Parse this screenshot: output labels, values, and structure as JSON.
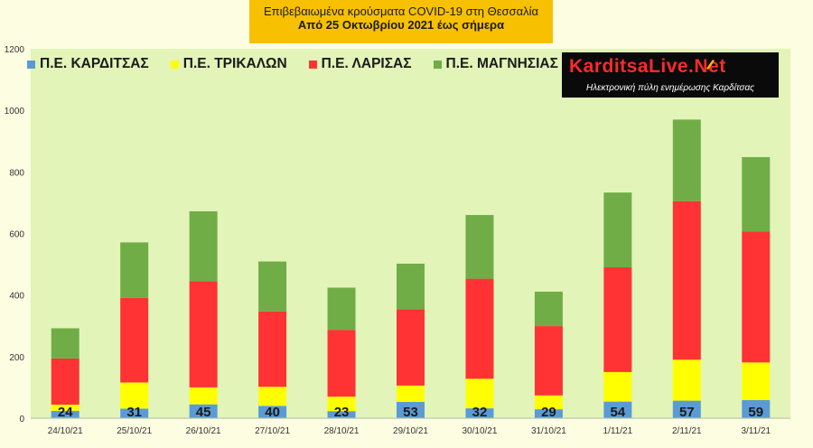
{
  "header": {
    "line1": "Επιβεβαιωμένα κρούσματα COVID-19 στη Θεσσαλία",
    "line2": "Από 25 Οκτωβρίου 2021 έως σήμερα"
  },
  "logo": {
    "name": "KarditsaLive.Net",
    "tagline": "Ηλεκτρονική πύλη ενημέρωσης Καρδίτσας"
  },
  "chart_data": {
    "type": "bar",
    "stacked": true,
    "title": "Επιβεβαιωμένα κρούσματα COVID-19 στη Θεσσαλία",
    "subtitle": "Από 25 Οκτωβρίου 2021 έως σήμερα",
    "categories": [
      "24/10/21",
      "25/10/21",
      "26/10/21",
      "27/10/21",
      "28/10/21",
      "29/10/21",
      "30/10/21",
      "31/10/21",
      "1/11/21",
      "2/11/21",
      "3/11/21"
    ],
    "series": [
      {
        "name": "Π.Ε. ΚΑΡΔΙΤΣΑΣ",
        "color": "#5b9bd5",
        "values": [
          24,
          31,
          45,
          40,
          23,
          53,
          32,
          29,
          54,
          57,
          59
        ]
      },
      {
        "name": "Π.Ε. ΤΡΙΚΑΛΩΝ",
        "color": "#ffff00",
        "values": [
          20,
          85,
          55,
          62,
          47,
          53,
          96,
          45,
          96,
          133,
          122
        ]
      },
      {
        "name": "Π.Ε. ΛΑΡΙΣΑΣ",
        "color": "#ff3333",
        "values": [
          150,
          275,
          345,
          245,
          217,
          248,
          325,
          225,
          340,
          515,
          425
        ]
      },
      {
        "name": "Π.Ε. ΜΑΓΝΗΣΙΑΣ",
        "color": "#70ad47",
        "values": [
          98,
          180,
          227,
          162,
          137,
          148,
          207,
          112,
          243,
          265,
          242
        ]
      }
    ],
    "data_labels_series": "Π.Ε. ΚΑΡΔΙΤΣΑΣ",
    "ylim": [
      0,
      1200
    ],
    "yticks": [
      0,
      200,
      400,
      600,
      800,
      1000,
      1200
    ],
    "grid": false,
    "legend_position": "top-left",
    "xlabel": "",
    "ylabel": ""
  }
}
